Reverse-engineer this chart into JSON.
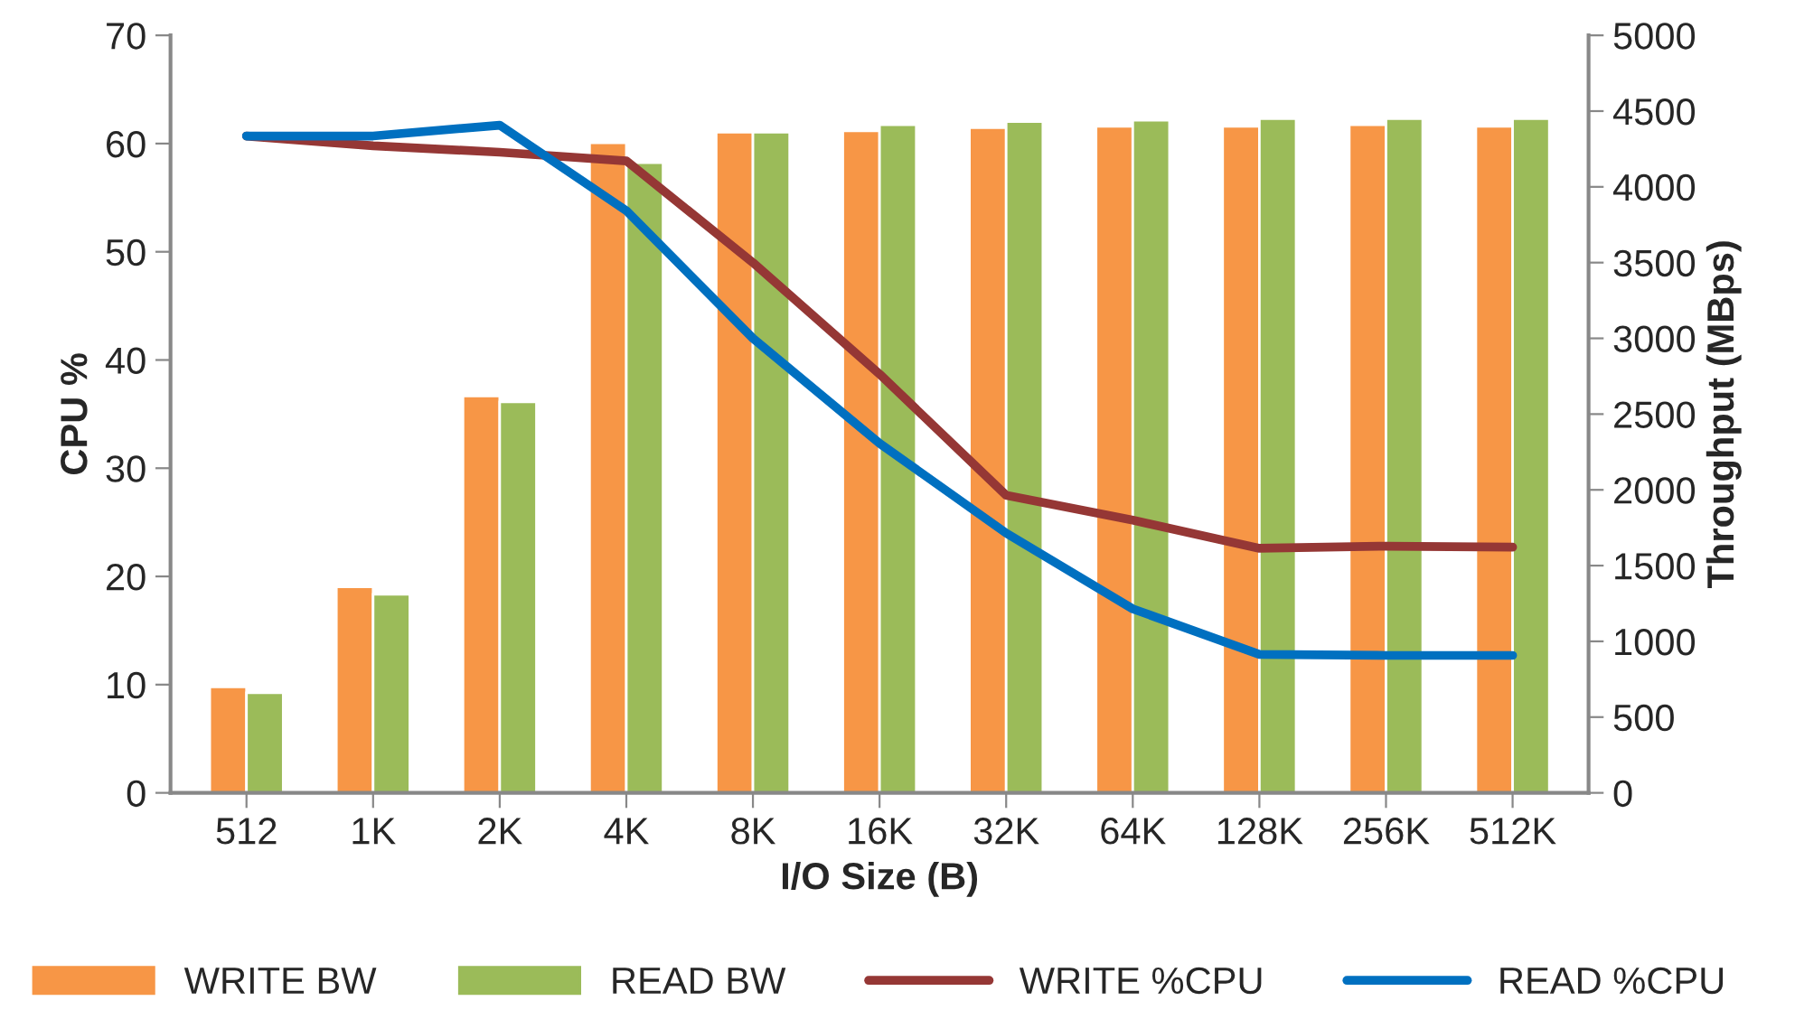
{
  "chart_data": {
    "type": "bar",
    "xlabel": "I/O Size (B)",
    "ylabel": "CPU %",
    "y2label": "Throughput (MBps)",
    "categories": [
      "512",
      "1K",
      "2K",
      "4K",
      "8K",
      "16K",
      "32K",
      "64K",
      "128K",
      "256K",
      "512K"
    ],
    "series": [
      {
        "name": "WRITE BW",
        "axis": "y2",
        "color": "#f79646",
        "values": [
          700,
          1360,
          2620,
          4290,
          4360,
          4370,
          4390,
          4400,
          4400,
          4410,
          4400
        ]
      },
      {
        "name": "READ BW",
        "axis": "y2",
        "color": "#9bbb59",
        "values": [
          660,
          1310,
          2580,
          4160,
          4360,
          4410,
          4430,
          4440,
          4450,
          4450,
          4450
        ]
      },
      {
        "name": "WRITE %CPU",
        "type": "line",
        "color": "#953735",
        "values": [
          60.7,
          59.8,
          59.2,
          58.4,
          49,
          38.7,
          27.5,
          25.2,
          22.6,
          22.8,
          22.7
        ]
      },
      {
        "name": "READ %CPU",
        "type": "line",
        "color": "#0070c0",
        "values": [
          60.7,
          60.7,
          61.7,
          53.8,
          42,
          32.3,
          24,
          17,
          12.8,
          12.7,
          12.7
        ]
      }
    ],
    "ylim": [
      0,
      70
    ],
    "yticks": [
      0,
      10,
      20,
      30,
      40,
      50,
      60,
      70
    ],
    "y2lim": [
      0,
      5000
    ],
    "y2ticks": [
      0,
      500,
      1000,
      1500,
      2000,
      2500,
      3000,
      3500,
      4000,
      4500,
      5000
    ],
    "grid": false,
    "legend": "bottom",
    "marker": "none",
    "line_style": "solid"
  }
}
